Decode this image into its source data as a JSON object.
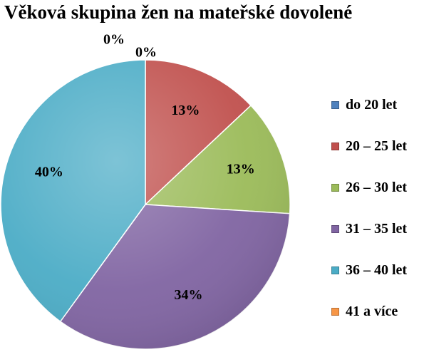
{
  "chart_data": {
    "type": "pie",
    "title": "Věková skupina žen na mateřské dovolené",
    "categories": [
      "do 20 let",
      "20 – 25 let",
      "26 – 30 let",
      "31 – 35 let",
      "36 – 40 let",
      "41 a více"
    ],
    "values": [
      0,
      13,
      13,
      34,
      40,
      0
    ],
    "data_labels": [
      "0%",
      "13%",
      "13%",
      "34%",
      "40%",
      "0%"
    ],
    "colors": [
      "#4f81bd",
      "#c0504d",
      "#9bbb59",
      "#8064a2",
      "#4bacc6",
      "#f79646"
    ],
    "legend_position": "right"
  }
}
